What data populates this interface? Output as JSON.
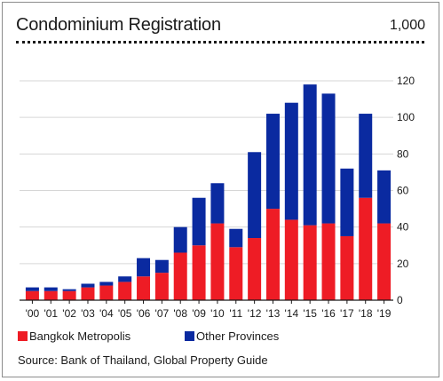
{
  "header": {
    "title": "Condominium Registration",
    "unit": "1,000"
  },
  "legend": {
    "items": [
      {
        "label": "Bangkok Metropolis",
        "color": "#ee1c25"
      },
      {
        "label": "Other Provinces",
        "color": "#0a2aa0"
      }
    ]
  },
  "source": "Source: Bank of Thailand, Global Property Guide",
  "chart_data": {
    "type": "bar",
    "stacked": true,
    "title": "Condominium Registration",
    "ylabel": "1,000",
    "ylim": [
      0,
      120
    ],
    "yticks": [
      0,
      20,
      40,
      60,
      80,
      100,
      120
    ],
    "y_axis_side": "right",
    "grid": true,
    "legend_position": "bottom",
    "categories": [
      "'00",
      "'01",
      "'02",
      "'03",
      "'04",
      "'05",
      "'06",
      "'07",
      "'08",
      "'09",
      "'10",
      "'11",
      "'12",
      "'13",
      "'14",
      "'15",
      "'16",
      "'17",
      "'18",
      "'19"
    ],
    "series": [
      {
        "name": "Bangkok Metropolis",
        "color": "#ee1c25",
        "values": [
          5,
          5,
          5,
          7,
          8,
          10,
          13,
          15,
          26,
          30,
          42,
          29,
          34,
          50,
          44,
          41,
          42,
          35,
          56,
          42
        ]
      },
      {
        "name": "Other Provinces",
        "color": "#0a2aa0",
        "values": [
          2,
          2,
          1,
          2,
          2,
          3,
          10,
          7,
          14,
          26,
          22,
          10,
          47,
          52,
          64,
          77,
          71,
          37,
          46,
          29
        ]
      }
    ]
  }
}
